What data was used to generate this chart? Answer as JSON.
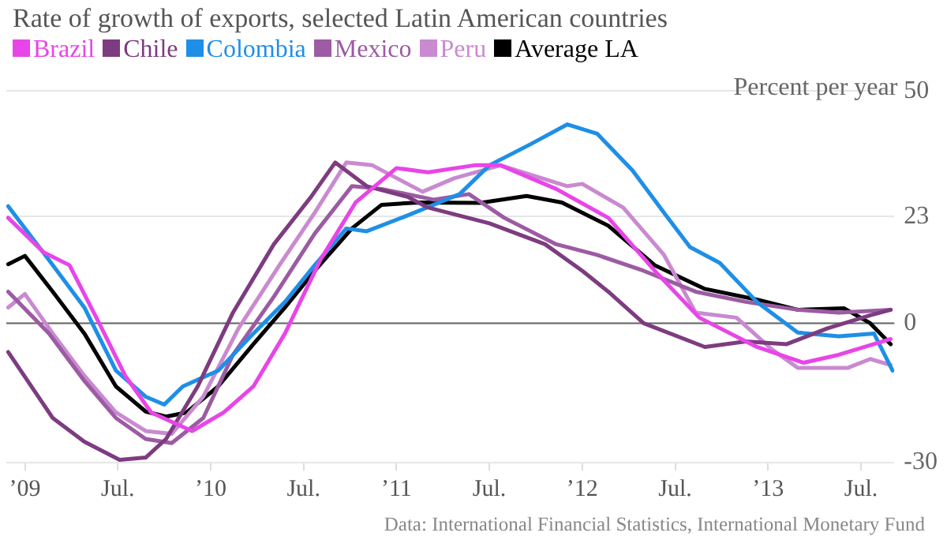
{
  "chart_data": {
    "type": "line",
    "title": "Rate of growth of exports, selected Latin American countries",
    "ylabel": "Percent per year",
    "annotations": [
      "Data: International Financial Statistics, International Monetary Fund"
    ],
    "xlim": [
      2008.9,
      2013.68
    ],
    "xticks": [
      {
        "value": 2009,
        "label": "’09"
      },
      {
        "value": 2009.5,
        "label": "Jul."
      },
      {
        "value": 2010,
        "label": "’10"
      },
      {
        "value": 2010.5,
        "label": "Jul."
      },
      {
        "value": 2011,
        "label": "’11"
      },
      {
        "value": 2011.5,
        "label": "Jul."
      },
      {
        "value": 2012,
        "label": "’12"
      },
      {
        "value": 2012.5,
        "label": "Jul."
      },
      {
        "value": 2013,
        "label": "’13"
      },
      {
        "value": 2013.5,
        "label": "Jul."
      }
    ],
    "ylim": [
      -30,
      50
    ],
    "yticks": [
      -30,
      0,
      23,
      50
    ],
    "grid": "y",
    "legend": "top left",
    "marker": "none",
    "line_style": "solid",
    "ref_lines": [
      {
        "axis": "y",
        "value": 0,
        "color": "#666666"
      }
    ],
    "series": [
      {
        "name": "Brazil",
        "color": "#e845e8",
        "x": [
          2008.91,
          2009.1,
          2009.24,
          2009.4,
          2009.54,
          2009.68,
          2009.9,
          2010.07,
          2010.23,
          2010.4,
          2010.59,
          2010.78,
          2011.0,
          2011.17,
          2011.42,
          2011.56,
          2011.86,
          2012.14,
          2012.39,
          2012.63,
          2012.94,
          2013.19,
          2013.38,
          2013.66
        ],
        "values": [
          22.7,
          15.3,
          12.5,
          0,
          -11.3,
          -19.2,
          -23.2,
          -19.2,
          -13.6,
          -2.2,
          13.6,
          26,
          33.4,
          32.5,
          34,
          34,
          28.9,
          22.7,
          11.3,
          1.2,
          -5.1,
          -8.5,
          -6.8,
          -3.4
        ]
      },
      {
        "name": "Chile",
        "color": "#7d3c80",
        "x": [
          2008.91,
          2009.15,
          2009.32,
          2009.51,
          2009.65,
          2009.76,
          2009.93,
          2010.12,
          2010.34,
          2010.54,
          2010.67,
          2010.84,
          2011.06,
          2011.17,
          2011.5,
          2011.8,
          2012.0,
          2012.14,
          2012.33,
          2012.66,
          2012.88,
          2013.1,
          2013.32,
          2013.55,
          2013.66
        ],
        "values": [
          -6.2,
          -20.4,
          -25.5,
          -29.4,
          -28.9,
          -24.9,
          -13.6,
          2.3,
          17,
          27.2,
          34.6,
          29.5,
          27.2,
          24.9,
          21.5,
          17,
          11.3,
          6.8,
          0,
          -5.1,
          -3.9,
          -4.5,
          -1.1,
          1.7,
          2.9
        ]
      },
      {
        "name": "Colombia",
        "color": "#1e8fe6",
        "x": [
          2008.91,
          2009.13,
          2009.32,
          2009.49,
          2009.65,
          2009.75,
          2009.85,
          2010.04,
          2010.23,
          2010.4,
          2010.56,
          2010.73,
          2010.84,
          2011.06,
          2011.34,
          2011.5,
          2011.72,
          2011.92,
          2012.08,
          2012.27,
          2012.44,
          2012.58,
          2012.74,
          2012.94,
          2013.16,
          2013.38,
          2013.57,
          2013.67
        ],
        "values": [
          25.2,
          13.6,
          3.4,
          -10.2,
          -15.8,
          -17.5,
          -13.6,
          -10.2,
          -2.2,
          4.6,
          12.5,
          20.4,
          19.8,
          23.2,
          27.8,
          34,
          38.5,
          42.8,
          40.8,
          32.9,
          23.8,
          16.4,
          13,
          4.6,
          -2,
          -2.8,
          -2.2,
          -10.2
        ]
      },
      {
        "name": "Mexico",
        "color": "#9c5ba3",
        "x": [
          2008.91,
          2009.13,
          2009.32,
          2009.49,
          2009.65,
          2009.79,
          2009.96,
          2010.12,
          2010.34,
          2010.56,
          2010.76,
          2010.92,
          2011.2,
          2011.39,
          2011.58,
          2011.86,
          2012.08,
          2012.33,
          2012.61,
          2012.88,
          2013.16,
          2013.38,
          2013.66
        ],
        "values": [
          6.8,
          -2.2,
          -12.4,
          -20.4,
          -24.9,
          -25.8,
          -20.4,
          -6.8,
          5.7,
          19.3,
          29.5,
          28.9,
          26.6,
          27.8,
          22.7,
          17,
          14.7,
          11.3,
          6.8,
          4.6,
          2.9,
          2.3,
          2.9
        ]
      },
      {
        "name": "Peru",
        "color": "#c98ad0",
        "x": [
          2008.91,
          2009.0,
          2009.15,
          2009.32,
          2009.49,
          2009.65,
          2009.79,
          2009.96,
          2010.15,
          2010.37,
          2010.56,
          2010.73,
          2010.87,
          2011.14,
          2011.31,
          2011.56,
          2011.92,
          2012.0,
          2012.22,
          2012.44,
          2012.61,
          2012.83,
          2013.02,
          2013.16,
          2013.43,
          2013.55,
          2013.66
        ],
        "values": [
          3.4,
          6.3,
          -2.2,
          -11.3,
          -19.2,
          -23.2,
          -23.8,
          -15.8,
          -1.1,
          12.5,
          23.8,
          34.6,
          34,
          28.3,
          31.2,
          34,
          29.5,
          30,
          24.9,
          14.7,
          2.3,
          1.2,
          -5.6,
          -9.6,
          -9.6,
          -7.7,
          -9
        ]
      },
      {
        "name": "Average LA",
        "color": "#000000",
        "x": [
          2008.91,
          2009.0,
          2009.15,
          2009.32,
          2009.49,
          2009.65,
          2009.76,
          2009.87,
          2010.04,
          2010.23,
          2010.4,
          2010.56,
          2010.76,
          2010.92,
          2011.12,
          2011.45,
          2011.7,
          2011.89,
          2012.14,
          2012.39,
          2012.66,
          2012.94,
          2013.16,
          2013.41,
          2013.55,
          2013.66
        ],
        "values": [
          12.7,
          14.5,
          6.8,
          -2.2,
          -13.6,
          -19,
          -20.1,
          -19.2,
          -13.6,
          -4.5,
          3.4,
          11.3,
          20.4,
          25.5,
          26,
          25.9,
          27.4,
          26,
          21,
          12.5,
          7.4,
          5.1,
          2.9,
          3.2,
          0,
          -4.5
        ]
      }
    ]
  }
}
